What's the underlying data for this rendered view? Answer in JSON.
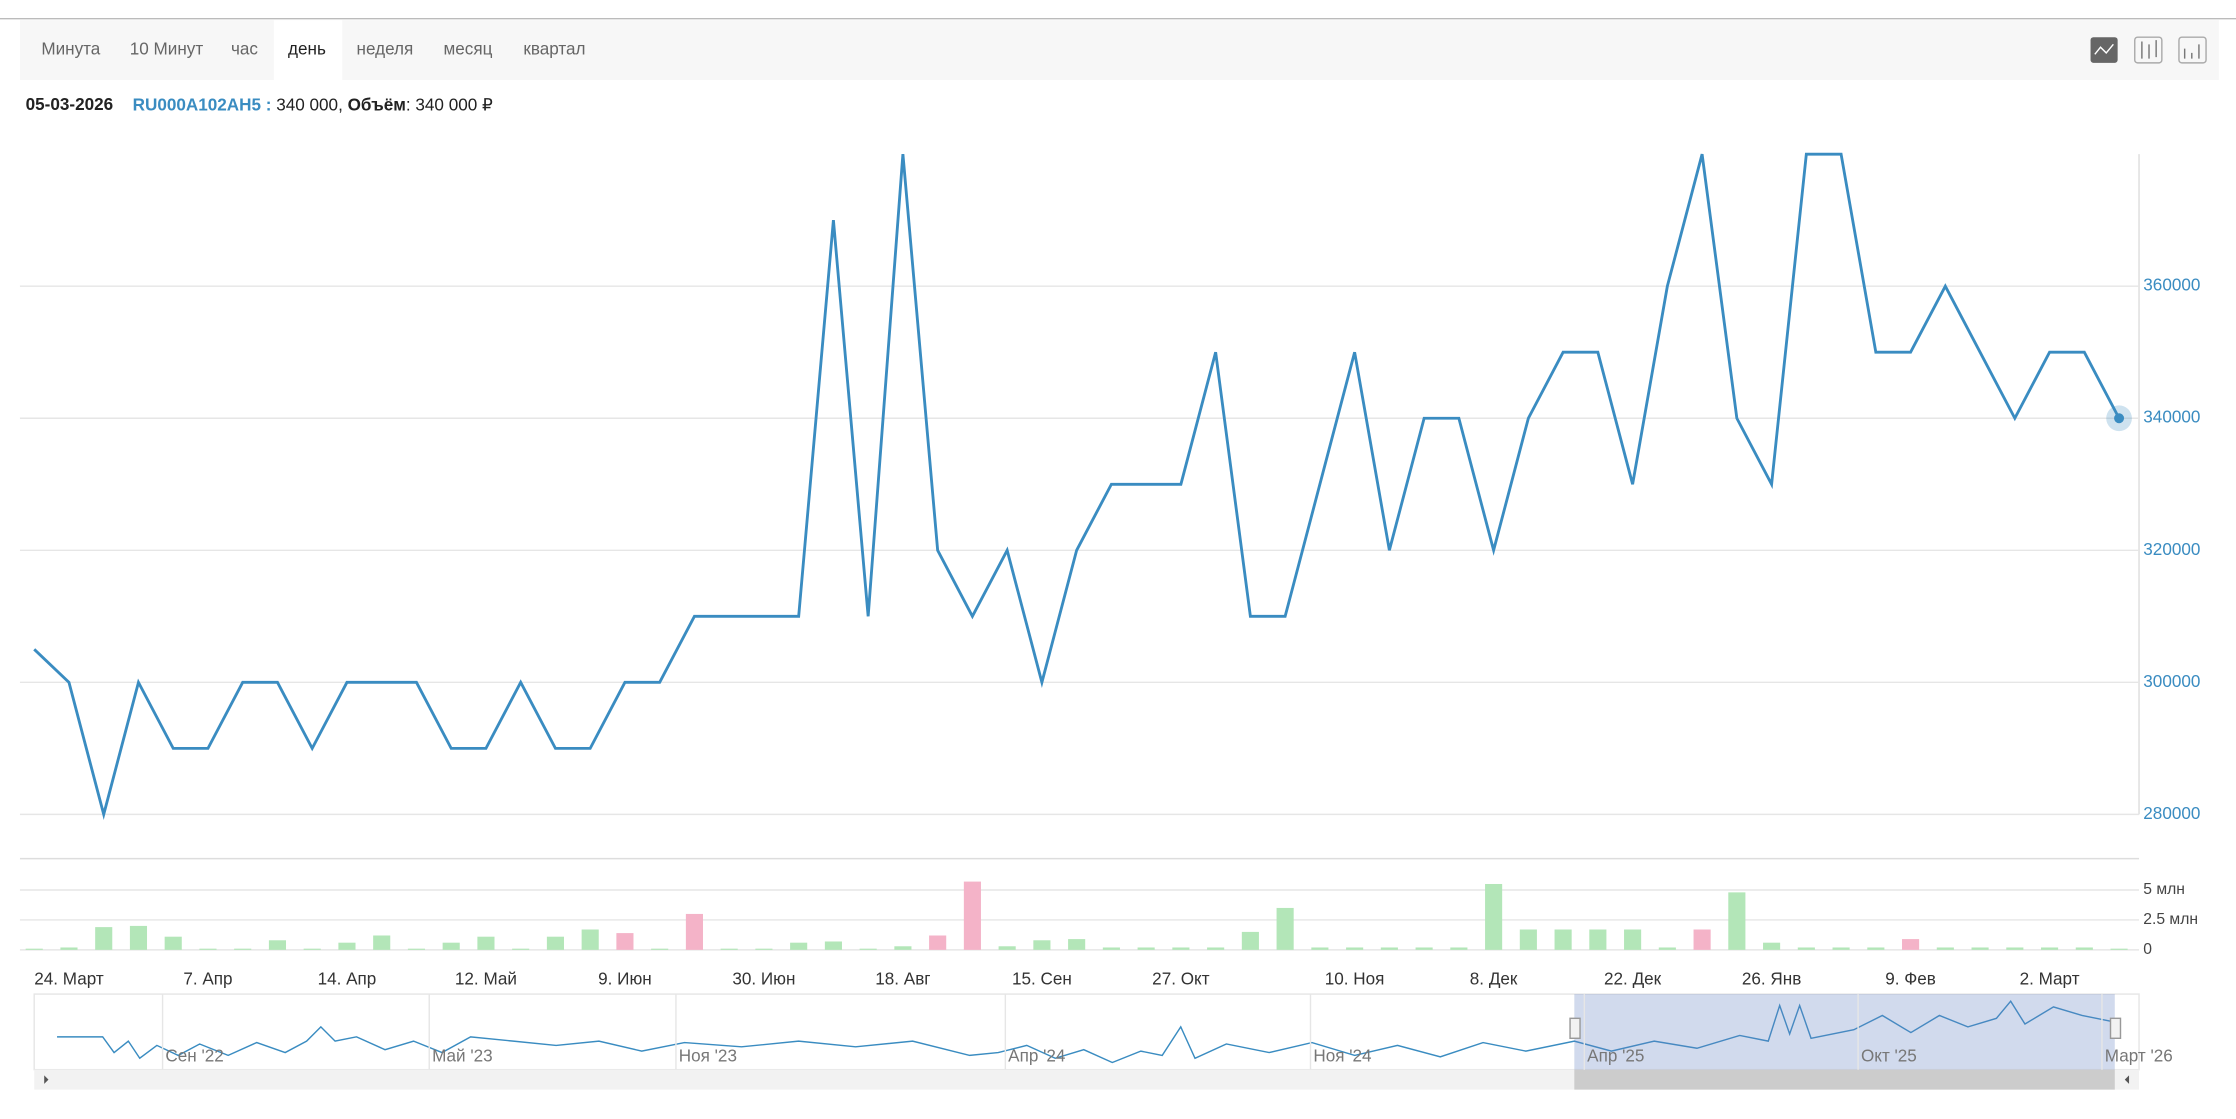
{
  "tabs": [
    "Минута",
    "10 Минут",
    "час",
    "день",
    "неделя",
    "месяц",
    "квартал"
  ],
  "header": {
    "date": "05-03-2026",
    "ticker": "RU000A102AH5 :",
    "price": "340 000,",
    "volume_label": "Объём",
    "volume": ": 340 000 ₽"
  },
  "chart_data": {
    "type": "line",
    "color": "#3a8cc1",
    "categories": [
      null,
      "24. Март",
      null,
      null,
      null,
      "7. Апр",
      null,
      null,
      null,
      "14. Апр",
      null,
      null,
      null,
      "12. Май",
      null,
      null,
      null,
      "9. Июн",
      null,
      null,
      null,
      "30. Июн",
      null,
      null,
      null,
      "18. Авг",
      null,
      null,
      null,
      "15. Сен",
      null,
      null,
      null,
      "27. Окт",
      null,
      null,
      null,
      null,
      "10. Ноя",
      null,
      null,
      null,
      "8. Дек",
      null,
      null,
      null,
      "22. Дек",
      null,
      null,
      null,
      "26. Янв",
      null,
      null,
      null,
      "9. Фев",
      null,
      null,
      null,
      "2. Март",
      null,
      null
    ],
    "values": [
      305000,
      300000,
      280000,
      300000,
      290000,
      290000,
      300000,
      300000,
      290000,
      300000,
      300000,
      300000,
      290000,
      290000,
      300000,
      290000,
      290000,
      300000,
      300000,
      310000,
      310000,
      310000,
      310000,
      370000,
      310000,
      380000,
      320000,
      310000,
      320000,
      300000,
      320000,
      330000,
      330000,
      330000,
      350000,
      310000,
      310000,
      330000,
      350000,
      320000,
      340000,
      340000,
      320000,
      340000,
      350000,
      350000,
      330000,
      360000,
      380000,
      340000,
      330000,
      380000,
      380000,
      350000,
      350000,
      360000,
      350000,
      340000,
      350000,
      350000,
      340000
    ],
    "ylim": [
      280000,
      380000
    ],
    "yticks": [
      280000,
      300000,
      320000,
      340000,
      360000
    ],
    "grid": true,
    "volume": {
      "values": [
        100000,
        200000,
        1900000,
        2000000,
        1100000,
        100000,
        100000,
        800000,
        100000,
        600000,
        1200000,
        100000,
        600000,
        1100000,
        100000,
        1100000,
        1700000,
        1400000,
        100000,
        3000000,
        100000,
        100000,
        600000,
        700000,
        100000,
        300000,
        1200000,
        5700000,
        300000,
        800000,
        900000,
        200000,
        200000,
        200000,
        200000,
        1500000,
        3500000,
        200000,
        200000,
        200000,
        200000,
        200000,
        5500000,
        1700000,
        1700000,
        1700000,
        1700000,
        200000,
        1700000,
        4800000,
        600000,
        200000,
        200000,
        200000,
        900000,
        200000,
        200000,
        200000,
        200000,
        200000,
        100000
      ],
      "colors": [
        "#b3e6b8",
        "#b3e6b8",
        "#b3e6b8",
        "#b3e6b8",
        "#b3e6b8",
        "#b3e6b8",
        "#b3e6b8",
        "#b3e6b8",
        "#b3e6b8",
        "#b3e6b8",
        "#b3e6b8",
        "#b3e6b8",
        "#b3e6b8",
        "#b3e6b8",
        "#b3e6b8",
        "#b3e6b8",
        "#b3e6b8",
        "#f4b3c8",
        "#b3e6b8",
        "#f4b3c8",
        "#b3e6b8",
        "#b3e6b8",
        "#b3e6b8",
        "#b3e6b8",
        "#b3e6b8",
        "#b3e6b8",
        "#f4b3c8",
        "#f4b3c8",
        "#b3e6b8",
        "#b3e6b8",
        "#b3e6b8",
        "#b3e6b8",
        "#b3e6b8",
        "#b3e6b8",
        "#b3e6b8",
        "#b3e6b8",
        "#b3e6b8",
        "#b3e6b8",
        "#b3e6b8",
        "#b3e6b8",
        "#b3e6b8",
        "#b3e6b8",
        "#b3e6b8",
        "#b3e6b8",
        "#b3e6b8",
        "#b3e6b8",
        "#b3e6b8",
        "#b3e6b8",
        "#f4b3c8",
        "#b3e6b8",
        "#b3e6b8",
        "#b3e6b8",
        "#b3e6b8",
        "#b3e6b8",
        "#f4b3c8",
        "#b3e6b8",
        "#b3e6b8",
        "#b3e6b8",
        "#b3e6b8",
        "#b3e6b8",
        "#b3e6b8"
      ],
      "ylim": [
        0,
        7500000
      ],
      "yticks": [
        0,
        {
          "value": 2500000,
          "label": "2.5 млн"
        },
        {
          "value": 5000000,
          "label": "5 млн"
        }
      ]
    }
  },
  "navigator": {
    "labels": [
      "Сен '22",
      "Май '23",
      "Ноя '23",
      "Апр '24",
      "Ноя '24",
      "Апр '25",
      "Окт '25",
      "Март '26"
    ]
  }
}
